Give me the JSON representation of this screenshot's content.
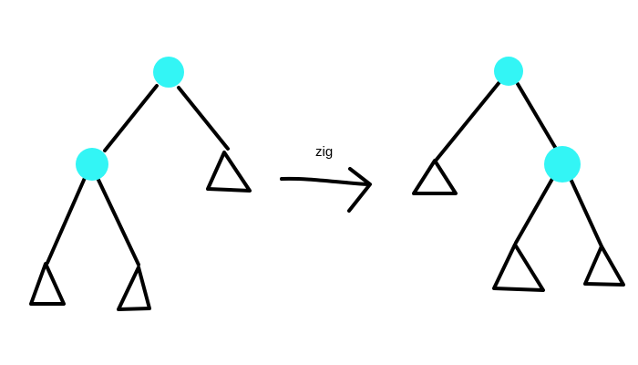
{
  "operation_label": "zig",
  "colors": {
    "node_fill": "#33f5f5",
    "line": "#000000",
    "background": "#ffffff"
  }
}
